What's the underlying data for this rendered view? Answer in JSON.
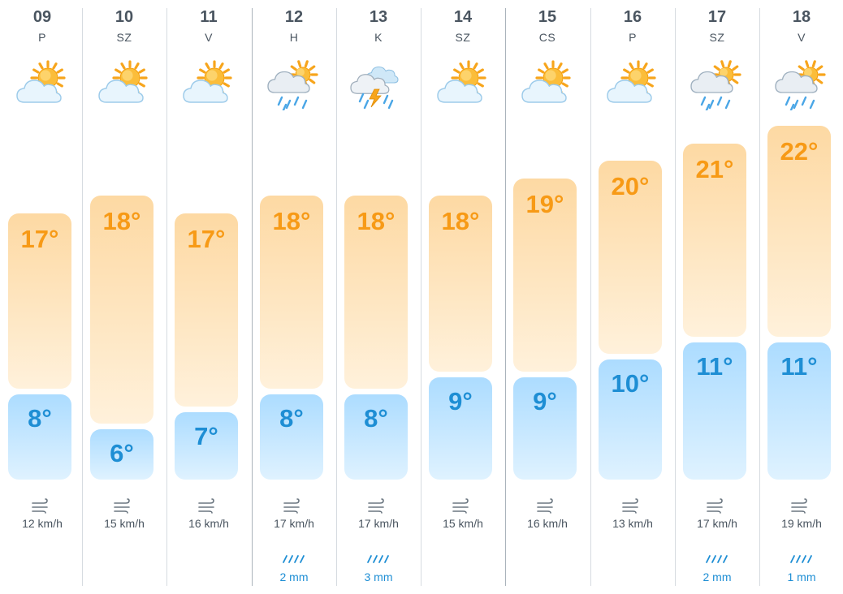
{
  "forecast": {
    "colors": {
      "max_temp": "#f79a16",
      "min_temp": "#1e8ed4",
      "max_bar": "#fdd9a3",
      "min_bar": "#acdcff",
      "rain_text": "#1e8ed4"
    },
    "temp_scale_c": {
      "top": 22,
      "bottom": 6
    },
    "days": [
      {
        "date": "09",
        "weekday": "P",
        "icon": "partly-cloudy-sun-icon",
        "max": "17°",
        "min": "8°",
        "max_c": 17,
        "min_c": 8,
        "wind": "12 km/h",
        "rain": ""
      },
      {
        "date": "10",
        "weekday": "SZ",
        "icon": "partly-cloudy-sun-icon",
        "max": "18°",
        "min": "6°",
        "max_c": 18,
        "min_c": 6,
        "wind": "15 km/h",
        "rain": ""
      },
      {
        "date": "11",
        "weekday": "V",
        "icon": "partly-cloudy-sun-icon",
        "max": "17°",
        "min": "7°",
        "max_c": 17,
        "min_c": 7,
        "wind": "16 km/h",
        "rain": ""
      },
      {
        "date": "12",
        "weekday": "H",
        "icon": "sun-cloud-rain-icon",
        "max": "18°",
        "min": "8°",
        "max_c": 18,
        "min_c": 8,
        "wind": "17 km/h",
        "rain": "2 mm"
      },
      {
        "date": "13",
        "weekday": "K",
        "icon": "thunderstorm-icon",
        "max": "18°",
        "min": "8°",
        "max_c": 18,
        "min_c": 8,
        "wind": "17 km/h",
        "rain": "3 mm"
      },
      {
        "date": "14",
        "weekday": "SZ",
        "icon": "partly-cloudy-sun-icon",
        "max": "18°",
        "min": "9°",
        "max_c": 18,
        "min_c": 9,
        "wind": "15 km/h",
        "rain": ""
      },
      {
        "date": "15",
        "weekday": "CS",
        "icon": "partly-cloudy-sun-icon",
        "max": "19°",
        "min": "9°",
        "max_c": 19,
        "min_c": 9,
        "wind": "16 km/h",
        "rain": ""
      },
      {
        "date": "16",
        "weekday": "P",
        "icon": "partly-cloudy-sun-icon",
        "max": "20°",
        "min": "10°",
        "max_c": 20,
        "min_c": 10,
        "wind": "13 km/h",
        "rain": ""
      },
      {
        "date": "17",
        "weekday": "SZ",
        "icon": "sun-cloud-rain-icon",
        "max": "21°",
        "min": "11°",
        "max_c": 21,
        "min_c": 11,
        "wind": "17 km/h",
        "rain": "2 mm"
      },
      {
        "date": "18",
        "weekday": "V",
        "icon": "sun-cloud-rain-icon",
        "max": "22°",
        "min": "11°",
        "max_c": 22,
        "min_c": 11,
        "wind": "19 km/h",
        "rain": "1 mm"
      }
    ]
  }
}
